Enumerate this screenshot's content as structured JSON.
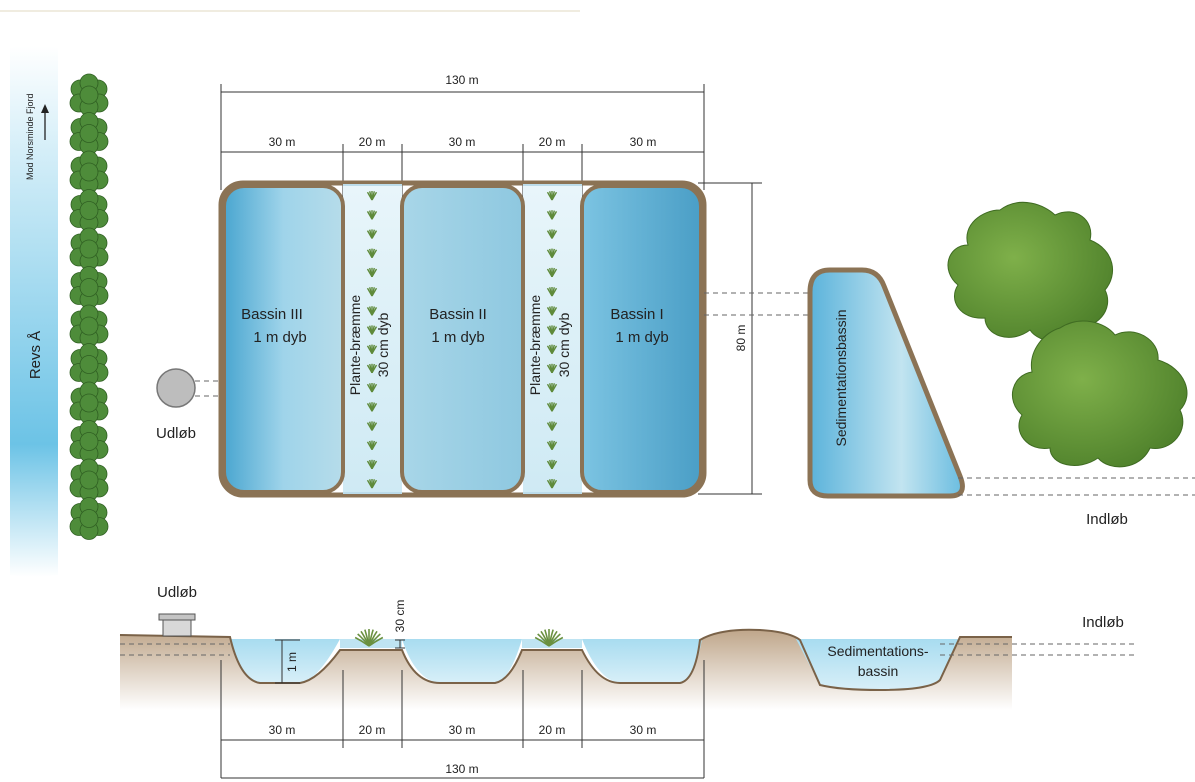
{
  "top_view": {
    "river": {
      "name": "Revs Å",
      "direction": "Mod Norsminde Fjord"
    },
    "basins": [
      {
        "name": "Bassin III",
        "depth": "1 m dyb"
      },
      {
        "name": "Bassin II",
        "depth": "1 m dyb"
      },
      {
        "name": "Bassin I",
        "depth": "1 m dyb"
      }
    ],
    "plant_strips": [
      {
        "name": "Plante-bræmme",
        "depth": "30 cm dyb"
      },
      {
        "name": "Plante-bræmme",
        "depth": "30 cm dyb"
      }
    ],
    "sedimentation": "Sedimentationsbassin",
    "outlet": "Udløb",
    "inlet": "Indløb",
    "widths": [
      "30 m",
      "20 m",
      "30 m",
      "20 m",
      "30 m"
    ],
    "total_length": "130 m",
    "height": "80 m"
  },
  "cross_section": {
    "outlet": "Udløb",
    "inlet": "Indløb",
    "sedimentation": "Sedimentations-",
    "sedimentation_2": "bassin",
    "depth_basin": "1 m",
    "depth_strip": "30 cm",
    "widths": [
      "30 m",
      "20 m",
      "30 m",
      "20 m",
      "30 m"
    ],
    "total_length": "130 m"
  },
  "colors": {
    "water": "#8ecfe6",
    "water_dark": "#4fa9d0",
    "berm": "#8b7355",
    "soil": "#c9b29a",
    "tree": "#6a9a3a",
    "hedge": "#4e8c3a"
  }
}
